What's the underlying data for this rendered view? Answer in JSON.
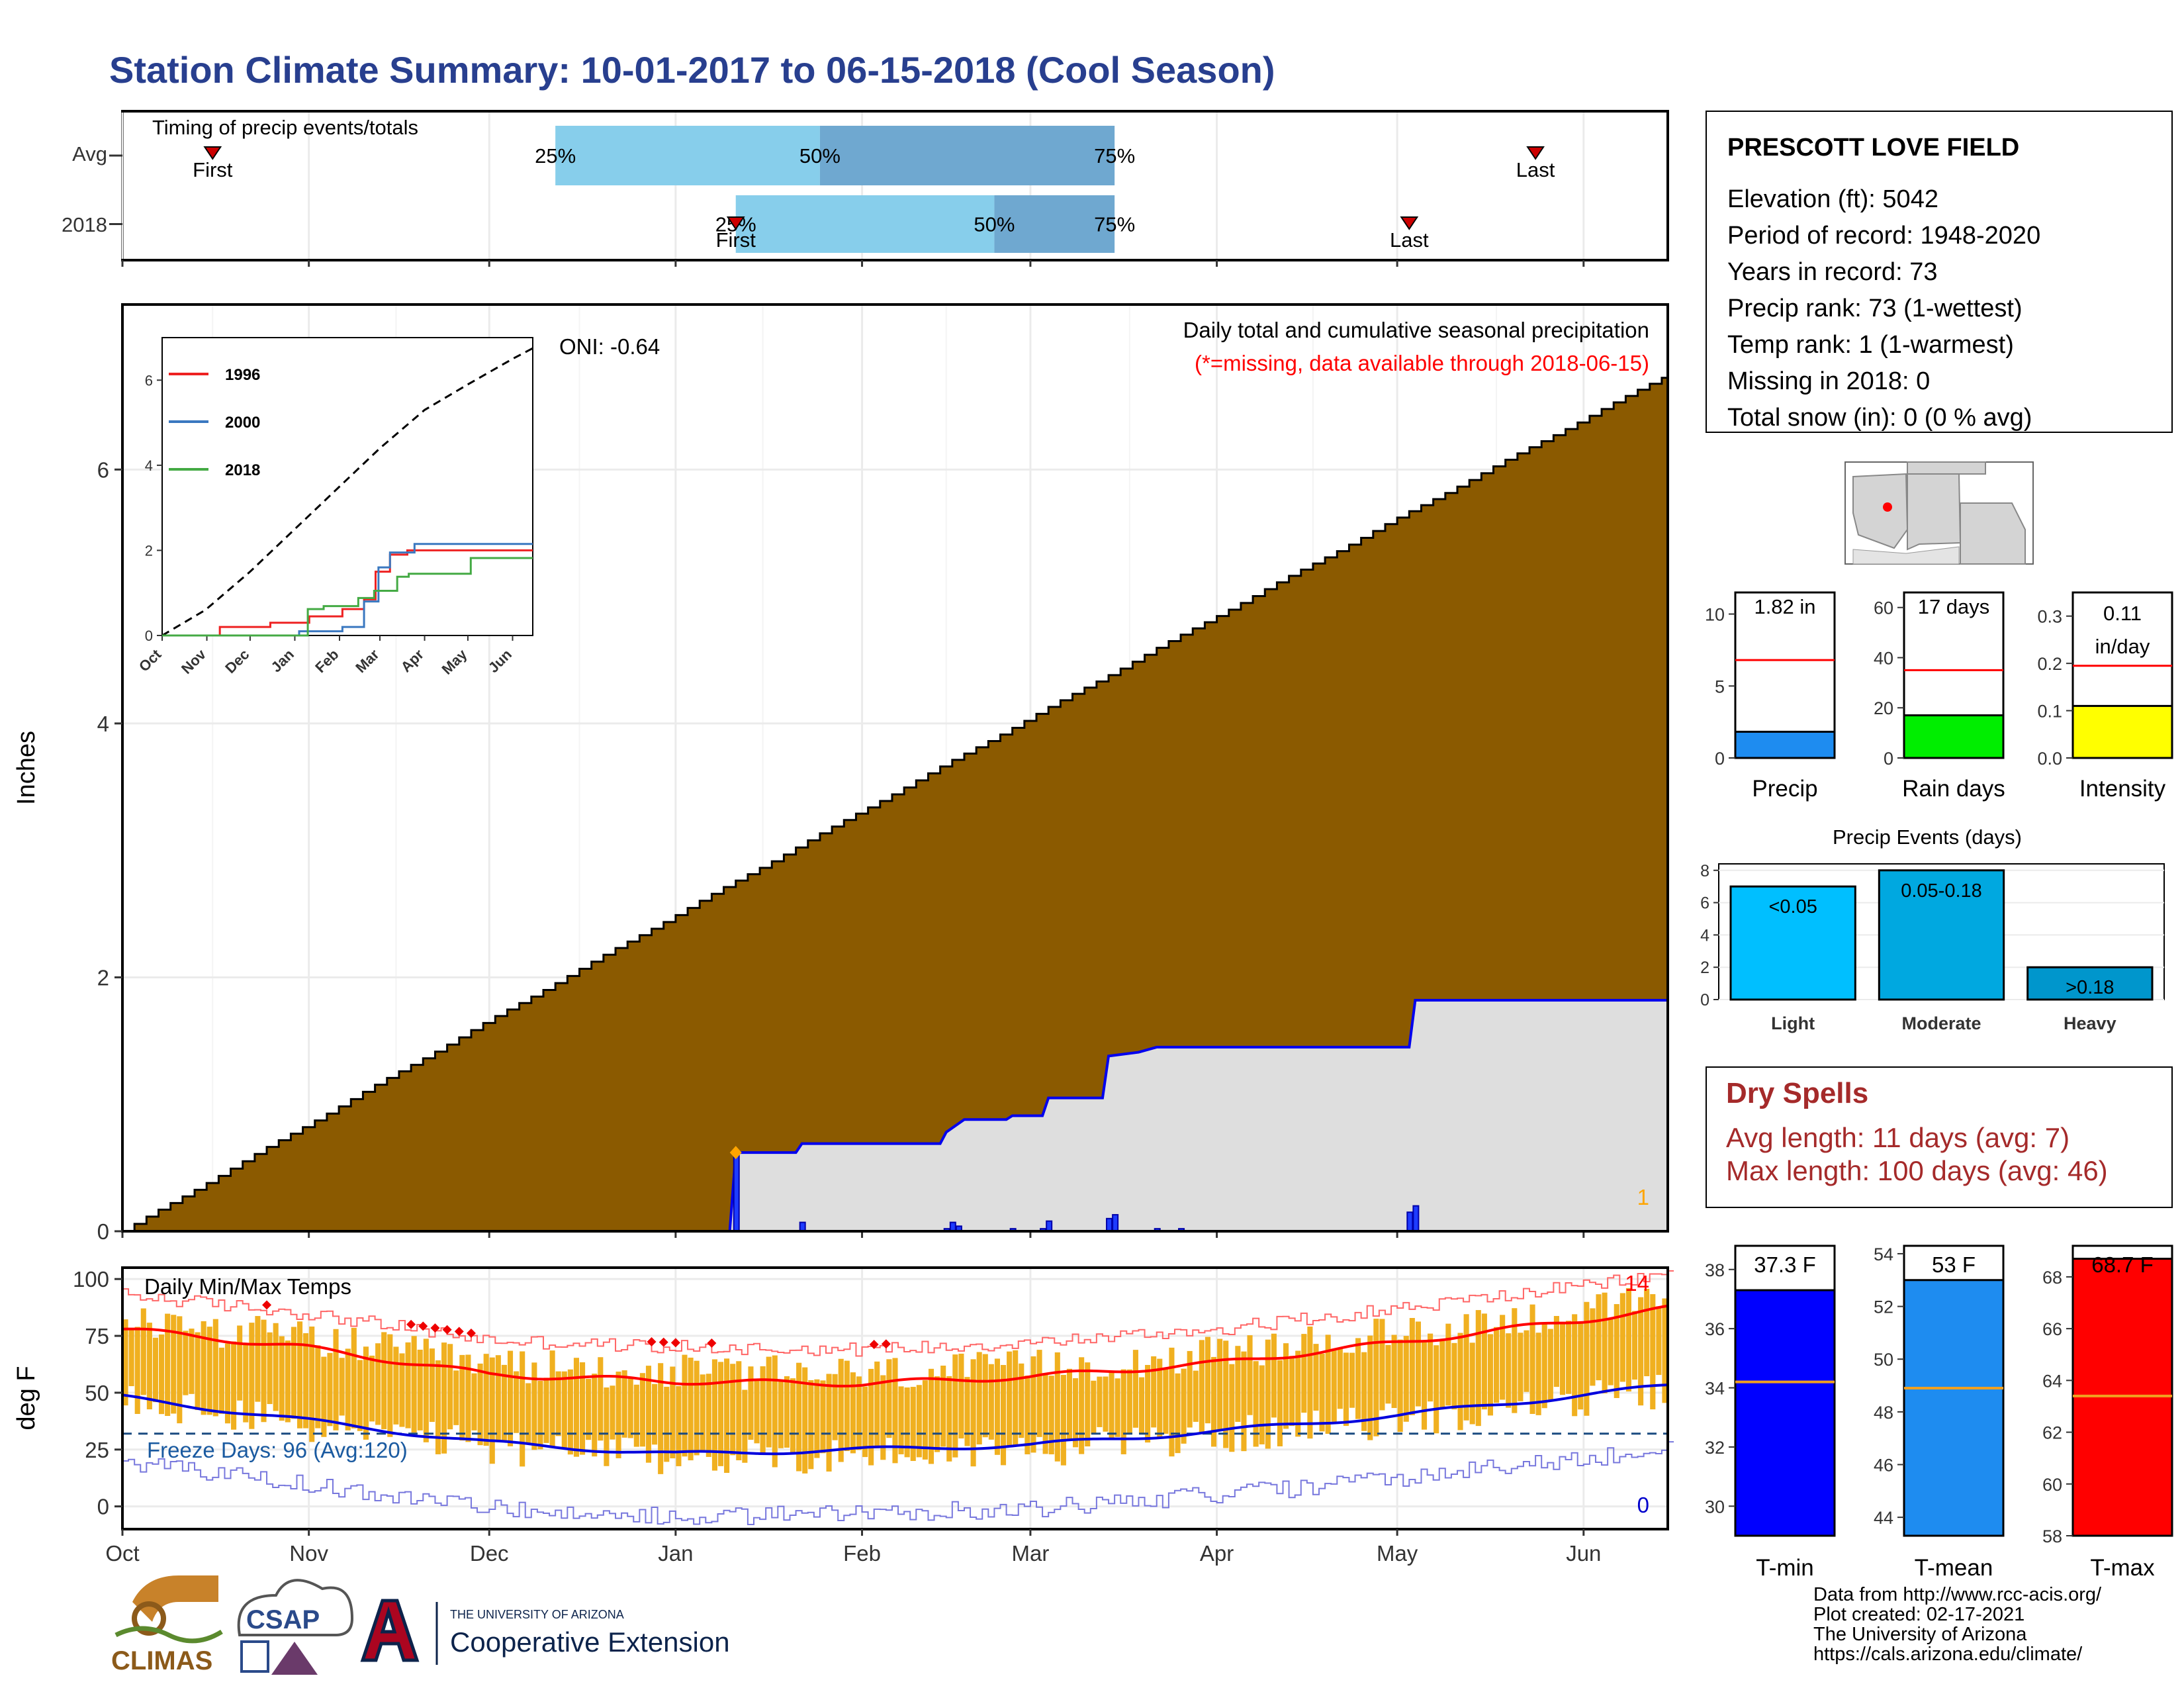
{
  "title": "Station Climate Summary: 10-01-2017 to 06-15-2018 (Cool Season)",
  "timing": {
    "label": "Timing of precip events/totals",
    "rows": [
      "Avg",
      "2018"
    ],
    "avg": {
      "p25": "25%",
      "p50": "50%",
      "p75": "75%",
      "first": "First",
      "last": "Last",
      "first_day": 15,
      "last_day": 235,
      "p25_day": 72,
      "p50_day": 116,
      "p75_day": 165
    },
    "y2018": {
      "p25": "25%",
      "p50": "50%",
      "p75": "75%",
      "first": "First",
      "last": "Last",
      "first_day": 102,
      "last_day": 214,
      "p25_day": 102,
      "p50_day": 145,
      "p75_day": 165
    }
  },
  "station": {
    "name": "PRESCOTT LOVE FIELD",
    "lines": [
      "Elevation (ft): 5042",
      "Period of record: 1948-2020",
      "Years in record: 73",
      "Precip rank: 73 (1-wettest)",
      "Temp rank: 1 (1-warmest)",
      "Missing in 2018: 0",
      "Total snow (in): 0 (0 % avg)"
    ]
  },
  "precip_chart": {
    "ylabel": "Inches",
    "caption": "Daily total and cumulative seasonal precipitation",
    "missing_note": "(*=missing, data available through 2018-06-15)",
    "oni": "ONI: -0.64",
    "corner_count": "1",
    "yticks": [
      0,
      2,
      4,
      6
    ],
    "ylim": [
      0,
      7.3
    ],
    "avg_cumulative_final": 6.75,
    "observed_cumulative": [
      {
        "day": 0,
        "value": 0
      },
      {
        "day": 101,
        "value": 0
      },
      {
        "day": 102,
        "value": 0.62
      },
      {
        "day": 112,
        "value": 0.62
      },
      {
        "day": 113,
        "value": 0.69
      },
      {
        "day": 136,
        "value": 0.69
      },
      {
        "day": 137,
        "value": 0.78
      },
      {
        "day": 140,
        "value": 0.88
      },
      {
        "day": 147,
        "value": 0.88
      },
      {
        "day": 148,
        "value": 0.91
      },
      {
        "day": 153,
        "value": 0.91
      },
      {
        "day": 154,
        "value": 1.05
      },
      {
        "day": 163,
        "value": 1.05
      },
      {
        "day": 164,
        "value": 1.38
      },
      {
        "day": 169,
        "value": 1.41
      },
      {
        "day": 172,
        "value": 1.45
      },
      {
        "day": 214,
        "value": 1.45
      },
      {
        "day": 215,
        "value": 1.82
      },
      {
        "day": 257,
        "value": 1.82
      }
    ],
    "daily_bars": [
      {
        "day": 102,
        "value": 0.62
      },
      {
        "day": 113,
        "value": 0.07
      },
      {
        "day": 137,
        "value": 0.02
      },
      {
        "day": 138,
        "value": 0.07
      },
      {
        "day": 139,
        "value": 0.04
      },
      {
        "day": 148,
        "value": 0.02
      },
      {
        "day": 153,
        "value": 0.02
      },
      {
        "day": 154,
        "value": 0.08
      },
      {
        "day": 164,
        "value": 0.1
      },
      {
        "day": 165,
        "value": 0.13
      },
      {
        "day": 172,
        "value": 0.02
      },
      {
        "day": 176,
        "value": 0.02
      },
      {
        "day": 214,
        "value": 0.15
      },
      {
        "day": 215,
        "value": 0.2
      }
    ],
    "months": [
      "Oct",
      "Nov",
      "Dec",
      "Jan",
      "Feb",
      "Mar",
      "Apr",
      "May",
      "Jun"
    ],
    "month_days": [
      0,
      31,
      61,
      92,
      123,
      151,
      182,
      212,
      243
    ],
    "season_days": 257
  },
  "inset": {
    "yticks": [
      0,
      2,
      4,
      6
    ],
    "months": [
      "Oct",
      "Nov",
      "Dec",
      "Jan",
      "Feb",
      "Mar",
      "Apr",
      "May",
      "Jun"
    ],
    "legend": [
      {
        "name": "1996",
        "color": "#ee2222"
      },
      {
        "name": "2000",
        "color": "#3a78c0"
      },
      {
        "name": "2018",
        "color": "#44aa44"
      }
    ],
    "series": [
      {
        "name": "1996",
        "color": "#ee2222",
        "points": [
          [
            0,
            0
          ],
          [
            40,
            0
          ],
          [
            40,
            0.2
          ],
          [
            75,
            0.2
          ],
          [
            75,
            0.3
          ],
          [
            102,
            0.3
          ],
          [
            102,
            0.45
          ],
          [
            125,
            0.45
          ],
          [
            125,
            0.62
          ],
          [
            140,
            0.62
          ],
          [
            140,
            0.85
          ],
          [
            148,
            0.85
          ],
          [
            148,
            1.5
          ],
          [
            158,
            1.5
          ],
          [
            158,
            1.9
          ],
          [
            170,
            1.9
          ],
          [
            170,
            2.0
          ],
          [
            257,
            2.0
          ]
        ]
      },
      {
        "name": "2000",
        "color": "#3a78c0",
        "points": [
          [
            0,
            0
          ],
          [
            95,
            0
          ],
          [
            95,
            0.1
          ],
          [
            125,
            0.1
          ],
          [
            125,
            0.2
          ],
          [
            140,
            0.2
          ],
          [
            140,
            0.8
          ],
          [
            150,
            0.8
          ],
          [
            150,
            1.6
          ],
          [
            158,
            1.6
          ],
          [
            158,
            1.95
          ],
          [
            175,
            1.95
          ],
          [
            175,
            2.15
          ],
          [
            257,
            2.15
          ]
        ]
      },
      {
        "name": "2018",
        "color": "#44aa44",
        "points": [
          [
            0,
            0
          ],
          [
            101,
            0
          ],
          [
            101,
            0.62
          ],
          [
            112,
            0.62
          ],
          [
            112,
            0.69
          ],
          [
            136,
            0.69
          ],
          [
            136,
            0.88
          ],
          [
            147,
            0.88
          ],
          [
            147,
            1.05
          ],
          [
            163,
            1.05
          ],
          [
            163,
            1.38
          ],
          [
            171,
            1.38
          ],
          [
            171,
            1.45
          ],
          [
            214,
            1.45
          ],
          [
            214,
            1.82
          ],
          [
            257,
            1.82
          ]
        ]
      }
    ],
    "avg_line": [
      [
        0,
        0
      ],
      [
        30,
        0.6
      ],
      [
        61,
        1.5
      ],
      [
        92,
        2.5
      ],
      [
        123,
        3.5
      ],
      [
        151,
        4.4
      ],
      [
        182,
        5.3
      ],
      [
        212,
        5.9
      ],
      [
        243,
        6.5
      ],
      [
        257,
        6.75
      ]
    ]
  },
  "map": {
    "name": "state-map"
  },
  "mini_precip": {
    "label": "Precip",
    "value_label": "1.82 in",
    "value": 1.82,
    "avg": 6.8,
    "yticks": [
      0,
      5,
      10
    ],
    "ylim": [
      0,
      11.5
    ],
    "color": "#1e8cf0"
  },
  "mini_raindays": {
    "label": "Rain days",
    "value_label": "17 days",
    "value": 17,
    "avg": 35,
    "yticks": [
      0,
      20,
      40,
      60
    ],
    "ylim": [
      0,
      66
    ],
    "color": "#00ee00"
  },
  "mini_intensity": {
    "label": "Intensity",
    "value_label": "0.11",
    "value_label2": "in/day",
    "value": 0.11,
    "avg": 0.195,
    "yticks": [
      "0.0",
      "0.1",
      "0.2",
      "0.3"
    ],
    "ytick_values": [
      0,
      0.1,
      0.2,
      0.3
    ],
    "ylim": [
      0,
      0.35
    ],
    "color": "#ffff00"
  },
  "events": {
    "title": "Precip Events (days)",
    "categories": [
      "Light",
      "Moderate",
      "Heavy"
    ],
    "bar_labels": [
      "<0.05",
      "0.05-0.18",
      ">0.18"
    ],
    "values": [
      7,
      8,
      2
    ],
    "colors": [
      "#00bfff",
      "#00a8e0",
      "#0096cc"
    ],
    "yticks": [
      0,
      2,
      4,
      6,
      8
    ],
    "ylim": [
      0,
      8.4
    ]
  },
  "dry_spells": {
    "title": "Dry Spells",
    "avg_line": "Avg length: 11 days (avg: 7)",
    "max_line": "Max length: 100 days (avg: 46)"
  },
  "temp_chart": {
    "ylabel": "deg F",
    "caption": "Daily Min/Max Temps",
    "freeze_label": "Freeze Days: 96 (Avg:120)",
    "hot_count": "14",
    "cold_count": "0",
    "yticks": [
      0,
      25,
      50,
      75,
      100
    ],
    "ylim": [
      -10,
      105
    ],
    "freeze_line": 32,
    "months": [
      "Oct",
      "Nov",
      "Dec",
      "Jan",
      "Feb",
      "Mar",
      "Apr",
      "May",
      "Jun"
    ],
    "avg_max_anchor": [
      [
        0,
        78
      ],
      [
        30,
        70
      ],
      [
        61,
        58
      ],
      [
        92,
        55
      ],
      [
        123,
        54
      ],
      [
        151,
        57
      ],
      [
        182,
        63
      ],
      [
        212,
        72
      ],
      [
        243,
        82
      ],
      [
        257,
        87
      ]
    ],
    "avg_min_anchor": [
      [
        0,
        48
      ],
      [
        30,
        38
      ],
      [
        61,
        28
      ],
      [
        92,
        23
      ],
      [
        123,
        25
      ],
      [
        151,
        27
      ],
      [
        182,
        33
      ],
      [
        212,
        40
      ],
      [
        243,
        49
      ],
      [
        257,
        53
      ]
    ]
  },
  "tmin": {
    "label": "T-min",
    "value_label": "37.3 F",
    "value": 37.3,
    "avg": 34.2,
    "yticks": [
      30,
      32,
      34,
      36,
      38
    ],
    "ylim": [
      29,
      38.8
    ],
    "color": "#0000ff"
  },
  "tmean": {
    "label": "T-mean",
    "value_label": "53 F",
    "value": 53,
    "avg": 48.9,
    "yticks": [
      44,
      46,
      48,
      50,
      52,
      54
    ],
    "ylim": [
      43.3,
      54.3
    ],
    "color": "#1e8cf0"
  },
  "tmax": {
    "label": "T-max",
    "value_label": "68.7 F",
    "value": 68.7,
    "avg": 63.4,
    "yticks": [
      58,
      60,
      62,
      64,
      66,
      68
    ],
    "ylim": [
      58,
      69.2
    ],
    "color": "#ff0000"
  },
  "footer": {
    "lines": [
      "Data from http://www.rcc-acis.org/",
      "Plot created: 02-17-2021",
      "The University of Arizona",
      "https://cals.arizona.edu/climate/"
    ],
    "logo_climas": "CLIMAS",
    "logo_csap": "CSAP",
    "logo_ua_small": "THE UNIVERSITY OF ARIZONA",
    "logo_ua_large": "Cooperative Extension"
  },
  "chart_data": [
    {
      "type": "area",
      "title": "Daily total and cumulative seasonal precipitation",
      "ylabel": "Inches",
      "ylim": [
        0,
        7.3
      ],
      "x": [
        "Oct",
        "Nov",
        "Dec",
        "Jan",
        "Feb",
        "Mar",
        "Apr",
        "May",
        "Jun"
      ],
      "series": [
        {
          "name": "",
          "values": [
            0,
            0.95,
            1.85,
            2.6,
            3.6,
            4.65,
            5.75,
            6.25,
            6.65
          ]
        },
        {
          "name": "",
          "values": [
            0,
            0,
            0,
            0,
            0.69,
            0.88,
            1.45,
            1.45,
            1.82
          ]
        }
      ]
    },
    {
      "type": "line",
      "ylim": [
        0,
        7
      ],
      "x": [
        "Oct",
        "Nov",
        "Dec",
        "Jan",
        "Feb",
        "Mar",
        "Apr",
        "May",
        "Jun"
      ],
      "series": [
        {
          "name": "1996",
          "values": [
            0,
            0.2,
            0.3,
            0.3,
            0.62,
            1.5,
            2.0,
            2.0,
            2.0
          ]
        },
        {
          "name": "2000",
          "values": [
            0,
            0,
            0,
            0.1,
            0.2,
            1.6,
            2.15,
            2.15,
            2.15
          ]
        },
        {
          "name": "2018",
          "values": [
            0,
            0,
            0,
            0,
            0.69,
            0.88,
            1.45,
            1.45,
            1.82
          ]
        }
      ]
    },
    {
      "type": "bar",
      "categories": [
        "Precip",
        "Rain days",
        "Intensity"
      ],
      "values": [
        1.82,
        17,
        0.11
      ]
    },
    {
      "type": "bar",
      "title": "Precip Events (days)",
      "categories": [
        "Light",
        "Moderate",
        "Heavy"
      ],
      "values": [
        7,
        8,
        2
      ]
    },
    {
      "type": "bar",
      "ylabel": "deg F",
      "categories": [
        "T-min",
        "T-mean",
        "T-max"
      ],
      "values": [
        37.3,
        53,
        68.7
      ]
    }
  ]
}
